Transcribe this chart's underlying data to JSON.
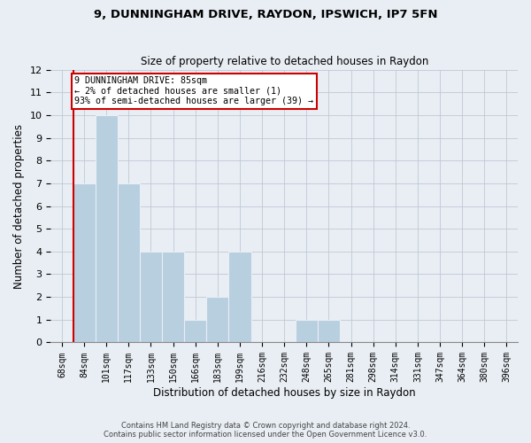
{
  "title_line1": "9, DUNNINGHAM DRIVE, RAYDON, IPSWICH, IP7 5FN",
  "title_line2": "Size of property relative to detached houses in Raydon",
  "xlabel": "Distribution of detached houses by size in Raydon",
  "ylabel": "Number of detached properties",
  "categories": [
    "68sqm",
    "84sqm",
    "101sqm",
    "117sqm",
    "133sqm",
    "150sqm",
    "166sqm",
    "183sqm",
    "199sqm",
    "216sqm",
    "232sqm",
    "248sqm",
    "265sqm",
    "281sqm",
    "298sqm",
    "314sqm",
    "331sqm",
    "347sqm",
    "364sqm",
    "380sqm",
    "396sqm"
  ],
  "values": [
    0,
    7,
    10,
    7,
    4,
    4,
    1,
    2,
    4,
    0,
    0,
    1,
    1,
    0,
    0,
    0,
    0,
    0,
    0,
    0,
    0
  ],
  "bar_color": "#b8cfe0",
  "red_line_x": 0.5,
  "annotation_text": "9 DUNNINGHAM DRIVE: 85sqm\n← 2% of detached houses are smaller (1)\n93% of semi-detached houses are larger (39) →",
  "annotation_box_color": "#ffffff",
  "annotation_border_color": "#cc0000",
  "ylim": [
    0,
    12
  ],
  "yticks": [
    0,
    1,
    2,
    3,
    4,
    5,
    6,
    7,
    8,
    9,
    10,
    11,
    12
  ],
  "background_color": "#e8eef4",
  "grid_color": "#c0c8d4",
  "footer_line1": "Contains HM Land Registry data © Crown copyright and database right 2024.",
  "footer_line2": "Contains public sector information licensed under the Open Government Licence v3.0."
}
